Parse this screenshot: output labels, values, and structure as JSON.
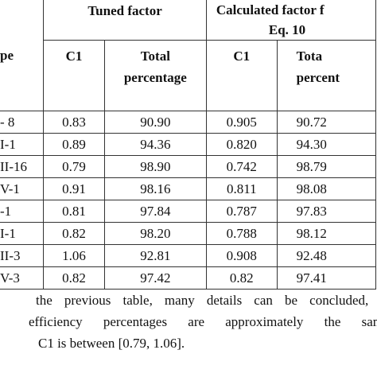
{
  "table": {
    "header": {
      "first": "pe",
      "tuned": "Tuned factor",
      "calculated": [
        "Calculated factor f",
        "Eq. 10"
      ],
      "sub": [
        [
          "C1"
        ],
        [
          "Total",
          "percentage"
        ],
        [
          "C1"
        ],
        [
          "Tota",
          "percent"
        ]
      ]
    },
    "rows": [
      [
        "- 8",
        "0.83",
        "90.90",
        "0.905",
        "90.72"
      ],
      [
        "I-1",
        "0.89",
        "94.36",
        "0.820",
        "94.30"
      ],
      [
        "II-16",
        "0.79",
        "98.90",
        "0.742",
        "98.79"
      ],
      [
        "V-1",
        "0.91",
        "98.16",
        "0.811",
        "98.08"
      ],
      [
        "-1",
        "0.81",
        "97.84",
        "0.787",
        "97.83"
      ],
      [
        "I-1",
        "0.82",
        "98.20",
        "0.788",
        "98.12"
      ],
      [
        "II-3",
        "1.06",
        "92.81",
        "0.908",
        "92.48"
      ],
      [
        "V-3",
        "0.82",
        "97.42",
        "0.82",
        "97.41"
      ]
    ]
  },
  "paragraph": [
    "the previous table, many details can be concluded, s",
    "efficiency percentages are approximately the sam",
    "C1 is between [0.79, 1.06]."
  ]
}
